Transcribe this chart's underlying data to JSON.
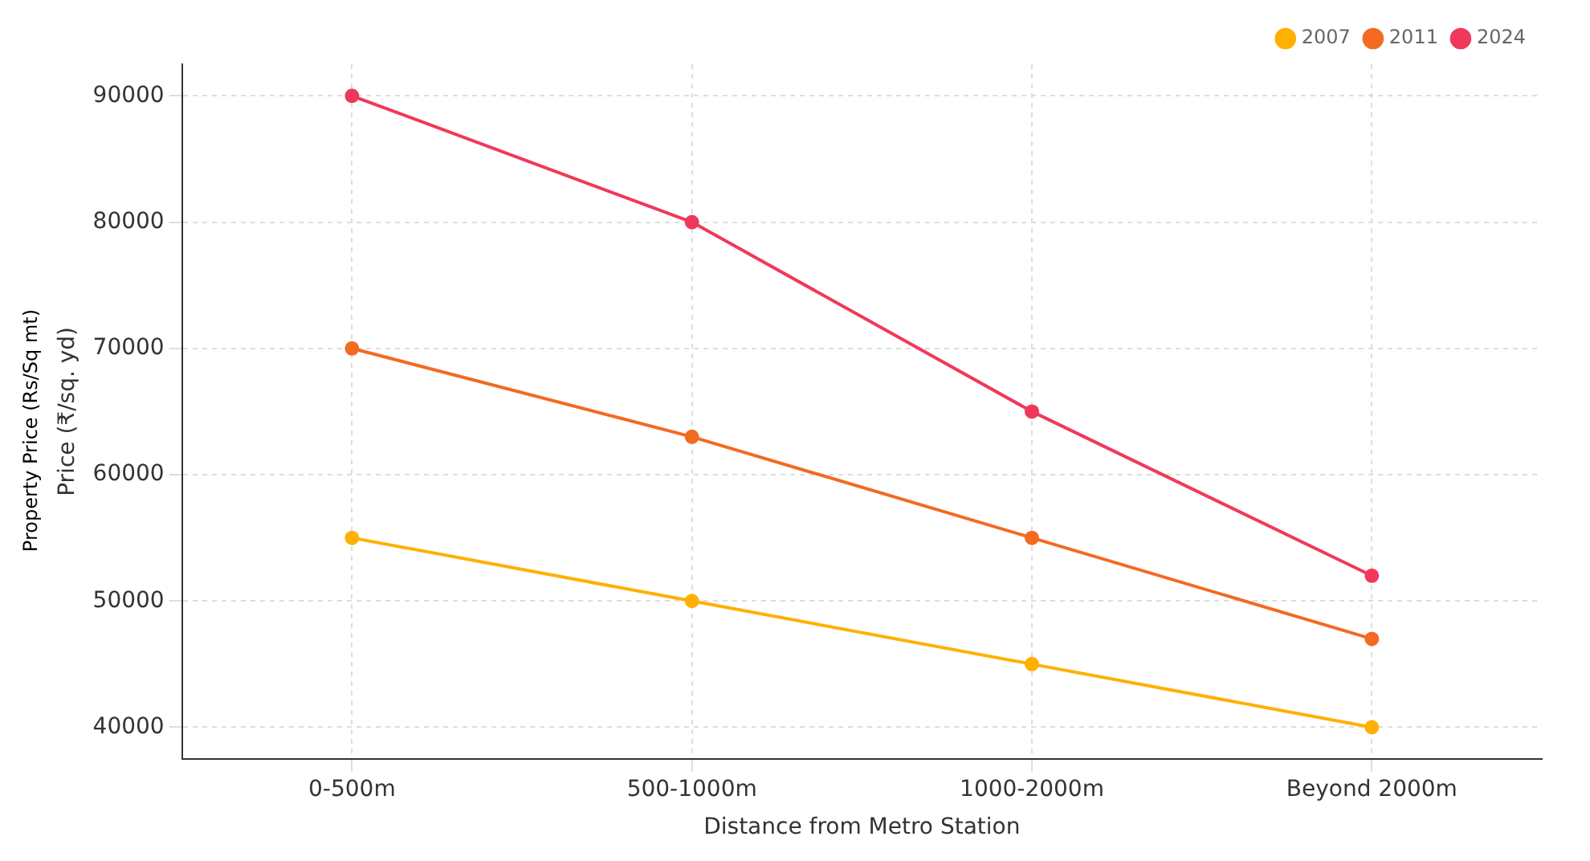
{
  "chart_data": {
    "type": "line",
    "xlabel": "Distance from Metro Station",
    "ylabel": "Price (₹/sq. yd)",
    "annotations": [
      "Property Price (Rs/Sq mt)"
    ],
    "categories": [
      "0-500m",
      "500-1000m",
      "1000-2000m",
      "Beyond 2000m"
    ],
    "series": [
      {
        "name": "2007",
        "color": "#ffb000",
        "values": [
          55000,
          50000,
          45000,
          40000
        ]
      },
      {
        "name": "2011",
        "color": "#f26b21",
        "values": [
          70000,
          63000,
          55000,
          47000
        ]
      },
      {
        "name": "2024",
        "color": "#f0395a",
        "values": [
          90000,
          80000,
          65000,
          52000
        ]
      }
    ],
    "ylim": [
      37500,
      92500
    ],
    "yticks": [
      40000,
      50000,
      60000,
      70000,
      80000,
      90000
    ],
    "grid": true,
    "legend": "top right",
    "marker": "circle",
    "line_style": "solid"
  }
}
